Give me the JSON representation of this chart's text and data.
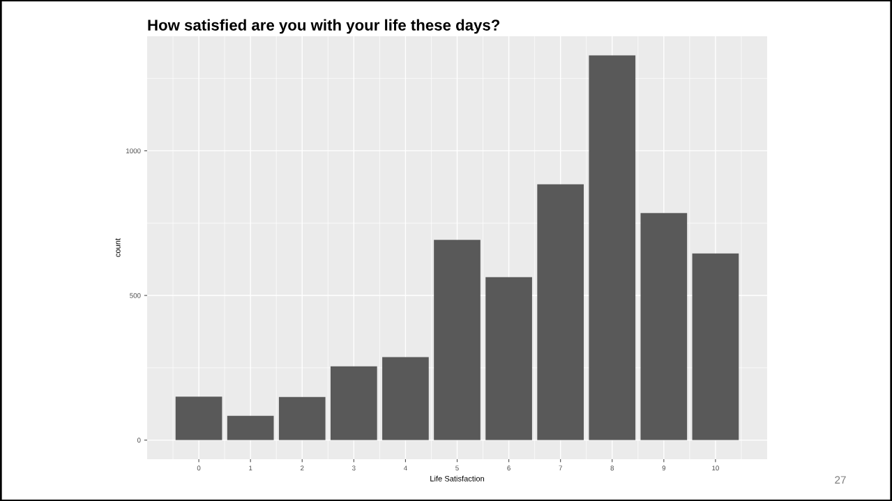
{
  "chart_data": {
    "type": "bar",
    "title": "How satisfied are you with your life these days?",
    "xlabel": "Life Satisfaction",
    "ylabel": "count",
    "categories": [
      "0",
      "1",
      "2",
      "3",
      "4",
      "5",
      "6",
      "7",
      "8",
      "9",
      "10"
    ],
    "values": [
      150,
      84,
      149,
      255,
      287,
      692,
      563,
      884,
      1330,
      785,
      645
    ],
    "color": "#595959",
    "ylim": [
      -66,
      1396
    ],
    "yticks": [
      0,
      500,
      1000
    ],
    "grid": true,
    "annotations": [
      "27"
    ]
  }
}
